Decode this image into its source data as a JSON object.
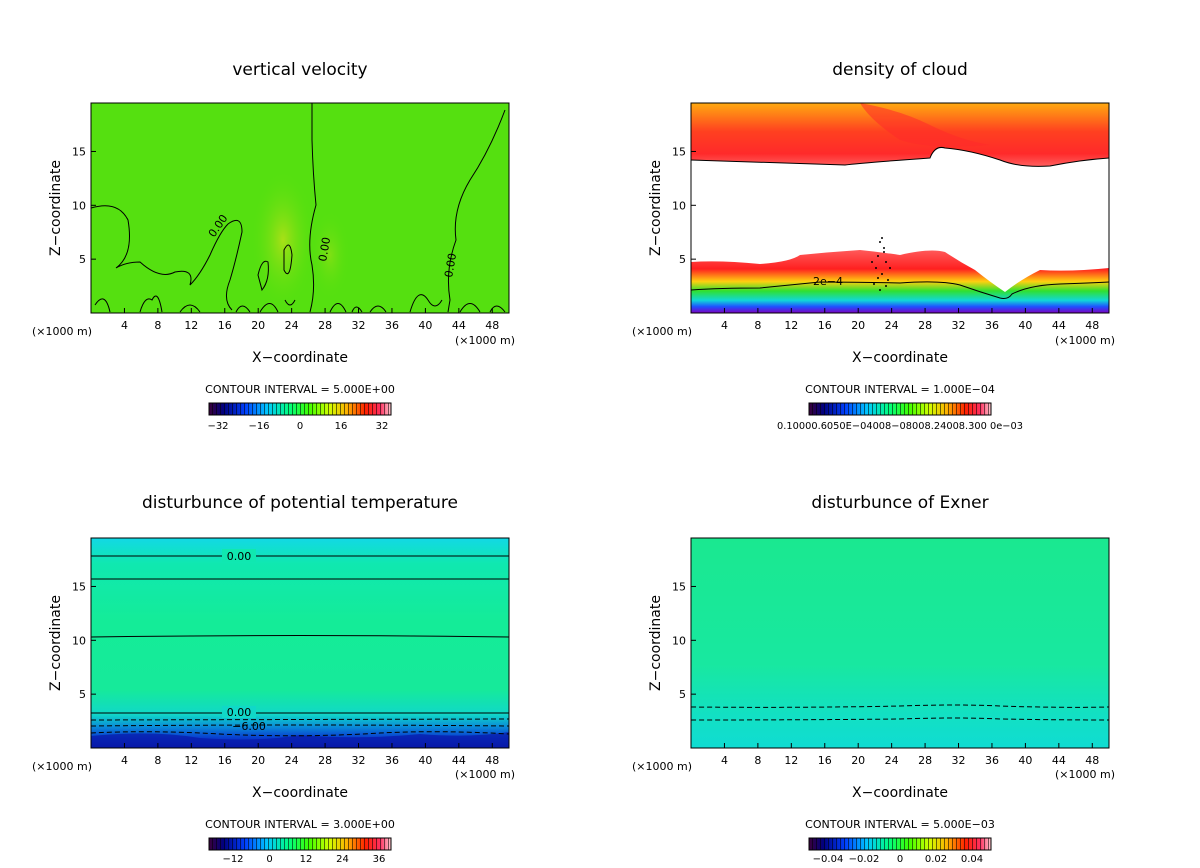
{
  "chart_data": [
    {
      "type": "heatmap",
      "title": "vertical velocity",
      "xlabel": "X−coordinate",
      "ylabel": "Z−coordinate",
      "x_unit": "(×1000 m)",
      "xlim": [
        0,
        50
      ],
      "ylim": [
        0,
        19.5
      ],
      "x_ticks": [
        "4",
        "8",
        "12",
        "16",
        "20",
        "24",
        "28",
        "32",
        "36",
        "40",
        "44",
        "48"
      ],
      "y_ticks": [
        "5",
        "10",
        "15"
      ],
      "contour_interval_text": "CONTOUR INTERVAL = 5.000E+00",
      "colorbar_ticks": [
        "−32",
        "−16",
        "0",
        "16",
        "32"
      ],
      "contour_labels": [
        "0.00",
        "0.00",
        "0.00"
      ],
      "background_color": "#55e010"
    },
    {
      "type": "heatmap",
      "title": "density of cloud",
      "xlabel": "X−coordinate",
      "ylabel": "Z−coordinate",
      "x_unit": "(×1000 m)",
      "xlim": [
        0,
        50
      ],
      "ylim": [
        0,
        19.5
      ],
      "x_ticks": [
        "4",
        "8",
        "12",
        "16",
        "20",
        "24",
        "28",
        "32",
        "36",
        "40",
        "44",
        "48"
      ],
      "y_ticks": [
        "5",
        "10",
        "15"
      ],
      "contour_interval_text": "CONTOUR INTERVAL = 1.000E−04",
      "colorbar_ticks_text": "0.10000.6050E−04008−08008.24008.300 0e−03",
      "contour_labels": [
        "2e−4"
      ]
    },
    {
      "type": "heatmap",
      "title": "disturbunce of potential temperature",
      "xlabel": "X−coordinate",
      "ylabel": "Z−coordinate",
      "x_unit": "(×1000 m)",
      "xlim": [
        0,
        50
      ],
      "ylim": [
        0,
        19.5
      ],
      "x_ticks": [
        "4",
        "8",
        "12",
        "16",
        "20",
        "24",
        "28",
        "32",
        "36",
        "40",
        "44",
        "48"
      ],
      "y_ticks": [
        "5",
        "10",
        "15"
      ],
      "contour_interval_text": "CONTOUR INTERVAL = 3.000E+00",
      "colorbar_ticks": [
        "−12",
        "0",
        "12",
        "24",
        "36"
      ],
      "contour_labels": [
        "0.00",
        "0.00",
        "−6.00"
      ]
    },
    {
      "type": "heatmap",
      "title": "disturbunce of Exner",
      "xlabel": "X−coordinate",
      "ylabel": "Z−coordinate",
      "x_unit": "(×1000 m)",
      "xlim": [
        0,
        50
      ],
      "ylim": [
        0,
        19.5
      ],
      "x_ticks": [
        "4",
        "8",
        "12",
        "16",
        "20",
        "24",
        "28",
        "32",
        "36",
        "40",
        "44",
        "48"
      ],
      "y_ticks": [
        "5",
        "10",
        "15"
      ],
      "contour_interval_text": "CONTOUR INTERVAL = 5.000E−03",
      "colorbar_ticks": [
        "−0.04",
        "−0.02",
        "0",
        "0.02",
        "0.04"
      ],
      "background_color": "#1ee890"
    }
  ]
}
